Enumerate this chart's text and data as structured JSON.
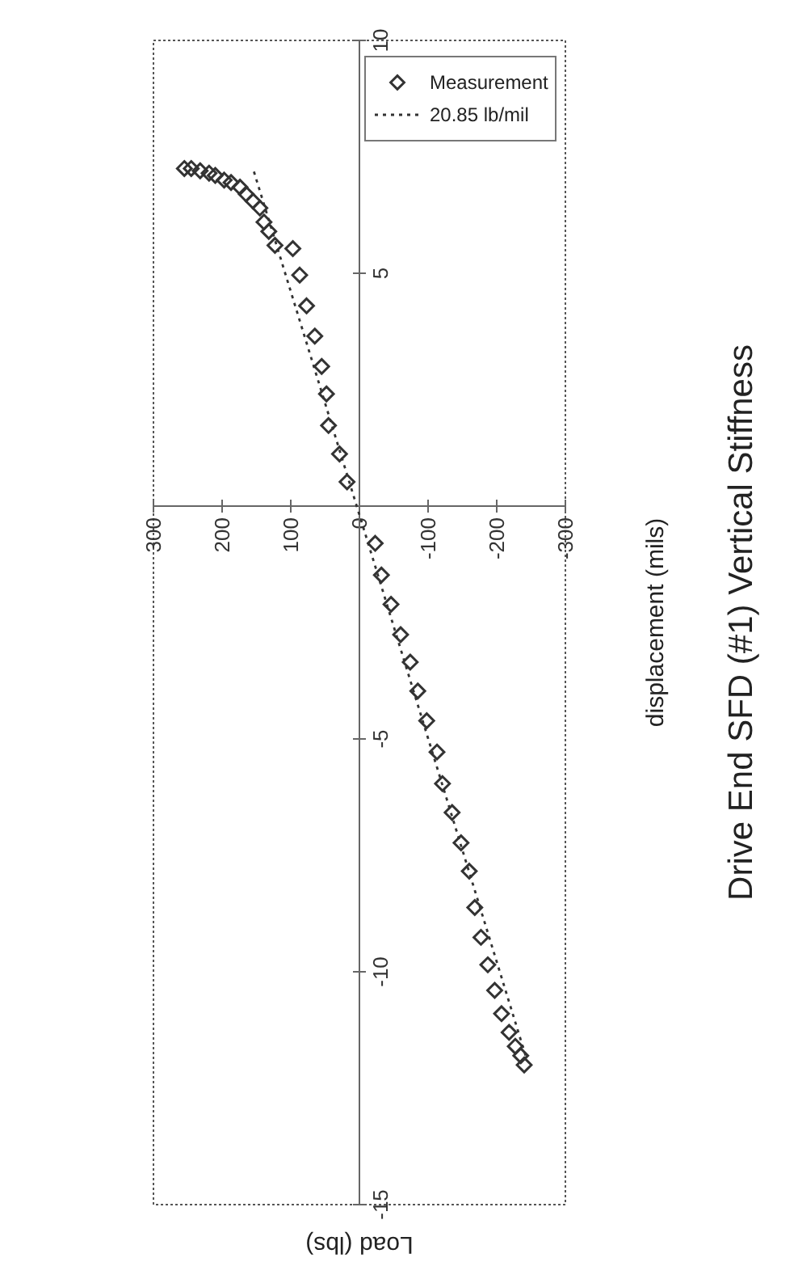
{
  "chart_data": {
    "type": "scatter",
    "title": "Drive End SFD (#1)  Vertical Stiffness",
    "xlabel": "Load (lbs)",
    "ylabel": "displacement (mils)",
    "xlim": [
      300,
      -300
    ],
    "ylim": [
      -15,
      10
    ],
    "xticks": [
      300,
      200,
      100,
      0,
      -100,
      -200,
      -300
    ],
    "yticks": [
      -15,
      -10,
      -5,
      5,
      10
    ],
    "grid": false,
    "legend": "top right",
    "line_style": "dotted",
    "series": [
      {
        "name": "Measurement",
        "marker": "diamond",
        "color": "#333333",
        "x": [
          -240,
          -235,
          -227,
          -218,
          -207,
          -197,
          -187,
          -177,
          -168,
          -160,
          -148,
          -135,
          -121,
          -113,
          -98,
          -85,
          -74,
          -60,
          -46,
          -32,
          -23,
          18,
          29,
          45,
          48,
          55,
          65,
          77,
          87,
          97,
          123,
          132,
          139,
          145,
          155,
          165,
          174,
          187,
          197,
          210,
          219,
          232,
          245,
          255
        ],
        "values": [
          -12.0,
          -11.8,
          -11.6,
          -11.3,
          -10.9,
          -10.4,
          -9.85,
          -9.26,
          -8.62,
          -7.84,
          -7.23,
          -6.58,
          -5.96,
          -5.28,
          -4.61,
          -3.97,
          -3.35,
          -2.76,
          -2.11,
          -1.48,
          -0.8,
          0.52,
          1.12,
          1.73,
          2.41,
          3.0,
          3.65,
          4.3,
          4.96,
          5.53,
          5.6,
          5.9,
          6.1,
          6.4,
          6.55,
          6.7,
          6.85,
          6.95,
          7.0,
          7.1,
          7.15,
          7.2,
          7.25,
          7.25
        ]
      },
      {
        "name": "20.85 lb/mil",
        "type": "line",
        "color": "#333333",
        "x": [
          -242,
          154
        ],
        "values": [
          -11.8,
          7.2
        ]
      }
    ]
  }
}
